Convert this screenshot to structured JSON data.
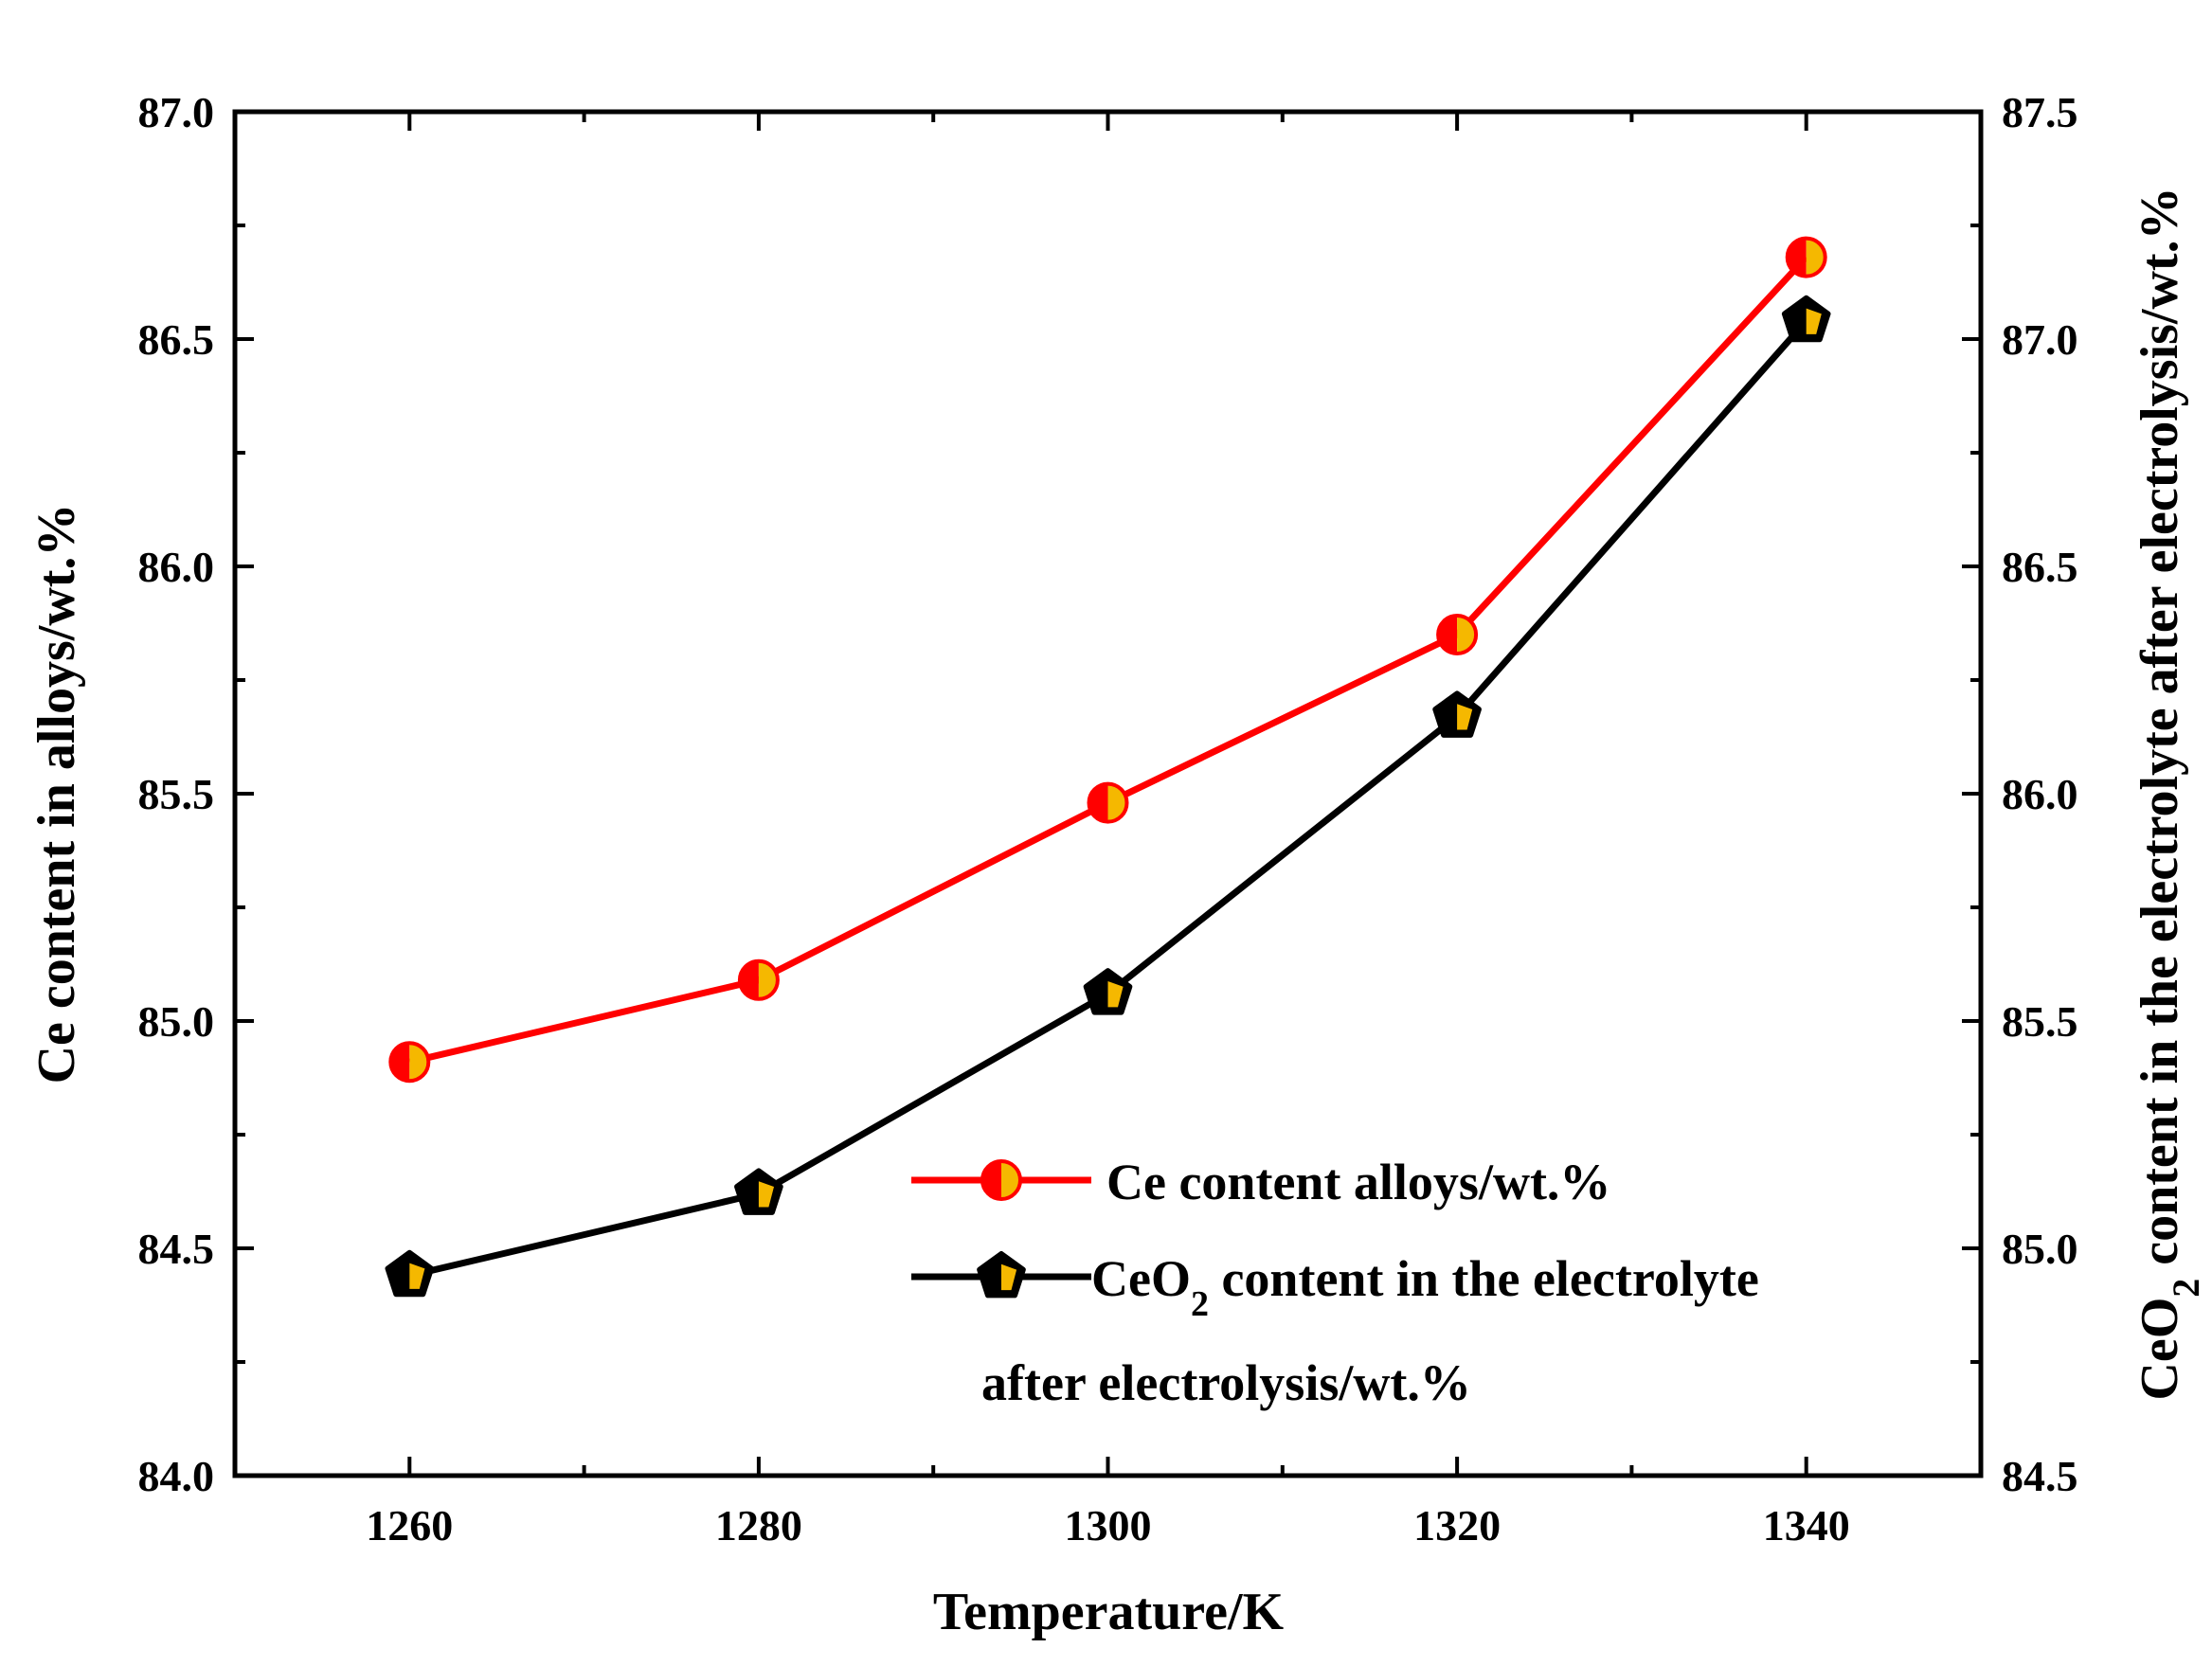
{
  "chart_data": {
    "type": "line",
    "title": "",
    "x": [
      1260,
      1280,
      1300,
      1320,
      1340
    ],
    "xlabel": "Temperature/K",
    "xlim": [
      1250,
      1350
    ],
    "xticks": [
      "1260",
      "1280",
      "1300",
      "1320",
      "1340"
    ],
    "ylabel_left": "Ce content in alloys/wt.%",
    "ylim_left": [
      84.0,
      87.0
    ],
    "yticks_left": [
      "84.0",
      "84.5",
      "85.0",
      "85.5",
      "86.0",
      "86.5",
      "87.0"
    ],
    "ylabel_right_parts": [
      "CeO",
      "2",
      " content in the electrolyte after electrolysis/wt.%"
    ],
    "ylim_right": [
      84.5,
      87.5
    ],
    "yticks_right": [
      "84.5",
      "85.0",
      "85.5",
      "86.0",
      "86.5",
      "87.0",
      "87.5"
    ],
    "series": [
      {
        "name": "Ce content alloys/wt.%",
        "axis": "left",
        "values": [
          84.91,
          85.09,
          85.48,
          85.85,
          86.68
        ],
        "line_color": "#ff0000",
        "marker": "half-circle",
        "marker_colors": [
          "#ff0000",
          "#f5b800"
        ]
      },
      {
        "name_parts": [
          "CeO",
          "2",
          " content in the electrolyte"
        ],
        "name_line2": "after electrolysis/wt.%",
        "axis": "right",
        "values": [
          84.94,
          85.12,
          85.56,
          86.17,
          87.04
        ],
        "line_color": "#000000",
        "marker": "half-pentagon",
        "marker_colors": [
          "#000000",
          "#f5b800"
        ]
      }
    ],
    "legend_position": "bottom-right"
  }
}
